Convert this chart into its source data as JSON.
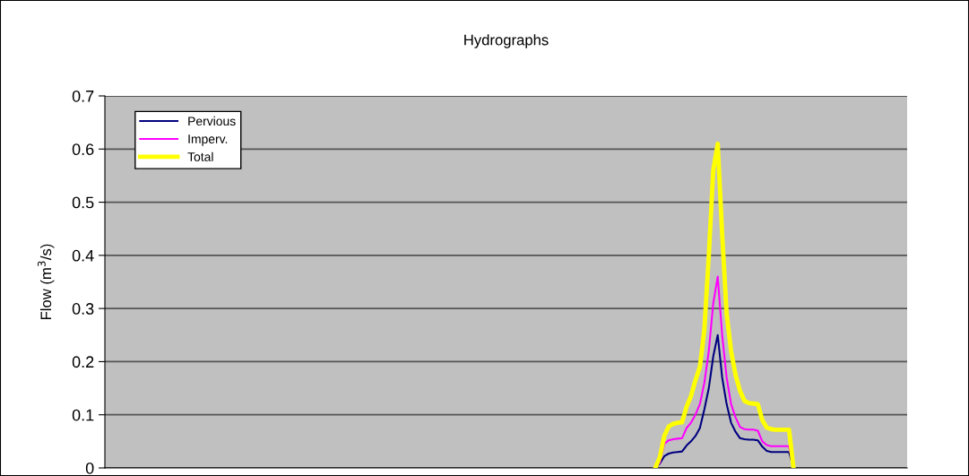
{
  "chart_data": {
    "type": "line",
    "title": "Hydrographs",
    "ylabel": "Flow (m$^{3}$/s)",
    "categories": [
      null,
      null,
      null,
      null,
      null,
      null,
      null,
      null,
      null,
      null,
      null,
      null,
      null,
      null,
      null,
      null,
      null,
      null,
      null,
      null,
      null,
      null,
      null,
      null,
      null,
      null,
      null,
      null,
      null,
      null,
      null,
      null,
      null,
      null,
      null,
      null,
      null,
      null,
      null,
      null,
      null,
      null,
      null,
      null,
      null,
      null,
      null,
      null,
      null,
      null,
      null,
      null,
      null,
      null,
      null,
      null,
      null,
      null,
      null,
      null,
      null,
      null,
      null,
      null,
      null,
      null,
      null,
      null,
      null,
      null,
      null,
      null,
      null,
      null,
      null,
      null,
      null,
      null,
      null,
      null,
      null,
      null,
      null,
      null,
      null,
      null,
      null,
      null,
      null,
      null,
      null,
      null,
      null,
      null,
      null,
      null,
      null,
      null,
      null,
      null,
      null,
      null,
      null,
      null,
      null,
      null,
      null,
      null,
      null,
      null,
      null,
      null,
      null,
      null,
      null,
      null,
      null,
      null,
      null,
      null,
      null,
      null,
      null,
      null,
      null,
      null,
      null,
      null,
      null,
      null,
      null,
      null,
      null,
      null,
      null,
      null,
      null,
      null,
      null,
      null,
      null,
      null,
      null,
      null,
      null,
      null,
      null,
      null,
      null,
      null,
      null,
      null,
      null,
      null,
      null,
      null,
      null,
      null,
      null,
      null,
      null,
      null,
      null,
      null,
      null,
      null,
      null,
      null,
      null,
      null,
      null,
      null,
      null,
      null,
      null,
      null,
      null,
      null,
      null,
      null
    ],
    "series": [
      {
        "name": "Pervious",
        "color": "#000080",
        "values": [
          null,
          null,
          null,
          null,
          null,
          null,
          null,
          null,
          null,
          null,
          null,
          null,
          null,
          null,
          null,
          null,
          null,
          null,
          null,
          null,
          null,
          null,
          null,
          null,
          null,
          null,
          null,
          null,
          null,
          null,
          null,
          null,
          null,
          null,
          null,
          null,
          null,
          null,
          null,
          null,
          null,
          null,
          null,
          null,
          null,
          null,
          null,
          null,
          null,
          null,
          null,
          null,
          null,
          null,
          null,
          null,
          null,
          null,
          null,
          null,
          null,
          null,
          null,
          null,
          null,
          null,
          null,
          null,
          null,
          null,
          null,
          null,
          null,
          null,
          null,
          null,
          null,
          null,
          null,
          null,
          null,
          null,
          null,
          null,
          null,
          null,
          null,
          null,
          null,
          null,
          null,
          null,
          null,
          null,
          null,
          null,
          null,
          null,
          null,
          null,
          null,
          null,
          null,
          null,
          null,
          null,
          null,
          null,
          null,
          null,
          null,
          null,
          null,
          null,
          null,
          null,
          null,
          null,
          null,
          null,
          null,
          null,
          null,
          0,
          0.008,
          0.022,
          0.027,
          0.029,
          0.03,
          0.031,
          0.042,
          0.05,
          0.06,
          0.075,
          0.11,
          0.15,
          0.21,
          0.25,
          0.17,
          0.12,
          0.085,
          0.068,
          0.056,
          0.054,
          0.053,
          0.053,
          0.052,
          0.04,
          0.032,
          0.03,
          0.03,
          0.03,
          0.03,
          0.03,
          0,
          null,
          null,
          null,
          null,
          null,
          null,
          null,
          null,
          null,
          null,
          null,
          null,
          null,
          null,
          null,
          null,
          null,
          null,
          null,
          null,
          null,
          null,
          null,
          null,
          null
        ]
      },
      {
        "name": "Imperv.",
        "color": "#ff00ff",
        "values": [
          null,
          null,
          null,
          null,
          null,
          null,
          null,
          null,
          null,
          null,
          null,
          null,
          null,
          null,
          null,
          null,
          null,
          null,
          null,
          null,
          null,
          null,
          null,
          null,
          null,
          null,
          null,
          null,
          null,
          null,
          null,
          null,
          null,
          null,
          null,
          null,
          null,
          null,
          null,
          null,
          null,
          null,
          null,
          null,
          null,
          null,
          null,
          null,
          null,
          null,
          null,
          null,
          null,
          null,
          null,
          null,
          null,
          null,
          null,
          null,
          null,
          null,
          null,
          null,
          null,
          null,
          null,
          null,
          null,
          null,
          null,
          null,
          null,
          null,
          null,
          null,
          null,
          null,
          null,
          null,
          null,
          null,
          null,
          null,
          null,
          null,
          null,
          null,
          null,
          null,
          null,
          null,
          null,
          null,
          null,
          null,
          null,
          null,
          null,
          null,
          null,
          null,
          null,
          null,
          null,
          null,
          null,
          null,
          null,
          null,
          null,
          null,
          null,
          null,
          null,
          null,
          null,
          null,
          null,
          null,
          null,
          null,
          null,
          0,
          0.01,
          0.045,
          0.052,
          0.054,
          0.055,
          0.056,
          0.075,
          0.085,
          0.1,
          0.12,
          0.16,
          0.22,
          0.31,
          0.36,
          0.25,
          0.17,
          0.12,
          0.095,
          0.077,
          0.073,
          0.072,
          0.072,
          0.07,
          0.05,
          0.043,
          0.041,
          0.041,
          0.041,
          0.041,
          0.041,
          0,
          null,
          null,
          null,
          null,
          null,
          null,
          null,
          null,
          null,
          null,
          null,
          null,
          null,
          null,
          null,
          null,
          null,
          null,
          null,
          null,
          null,
          null,
          null,
          null,
          null
        ]
      },
      {
        "name": "Total",
        "color": "#ffff00",
        "values": [
          null,
          null,
          null,
          null,
          null,
          null,
          null,
          null,
          null,
          null,
          null,
          null,
          null,
          null,
          null,
          null,
          null,
          null,
          null,
          null,
          null,
          null,
          null,
          null,
          null,
          null,
          null,
          null,
          null,
          null,
          null,
          null,
          null,
          null,
          null,
          null,
          null,
          null,
          null,
          null,
          null,
          null,
          null,
          null,
          null,
          null,
          null,
          null,
          null,
          null,
          null,
          null,
          null,
          null,
          null,
          null,
          null,
          null,
          null,
          null,
          null,
          null,
          null,
          null,
          null,
          null,
          null,
          null,
          null,
          null,
          null,
          null,
          null,
          null,
          null,
          null,
          null,
          null,
          null,
          null,
          null,
          null,
          null,
          null,
          null,
          null,
          null,
          null,
          null,
          null,
          null,
          null,
          null,
          null,
          null,
          null,
          null,
          null,
          null,
          null,
          null,
          null,
          null,
          null,
          null,
          null,
          null,
          null,
          null,
          null,
          null,
          null,
          null,
          null,
          null,
          null,
          null,
          null,
          null,
          null,
          null,
          null,
          null,
          0,
          0.02,
          0.06,
          0.078,
          0.083,
          0.085,
          0.086,
          0.115,
          0.135,
          0.165,
          0.19,
          0.26,
          0.4,
          0.56,
          0.61,
          0.44,
          0.29,
          0.22,
          0.175,
          0.145,
          0.126,
          0.122,
          0.121,
          0.12,
          0.09,
          0.076,
          0.073,
          0.072,
          0.072,
          0.072,
          0.072,
          0,
          null,
          null,
          null,
          null,
          null,
          null,
          null,
          null,
          null,
          null,
          null,
          null,
          null,
          null,
          null,
          null,
          null,
          null,
          null,
          null,
          null,
          null,
          null,
          null,
          null
        ]
      }
    ],
    "ylim": [
      0,
      0.7
    ],
    "yticks": [
      0,
      0.1,
      0.2,
      0.3,
      0.4,
      0.5,
      0.6,
      0.7
    ],
    "grid": "y",
    "legend": "top left",
    "tick_labels": "y",
    "marker": "none",
    "line_style": "solid"
  }
}
